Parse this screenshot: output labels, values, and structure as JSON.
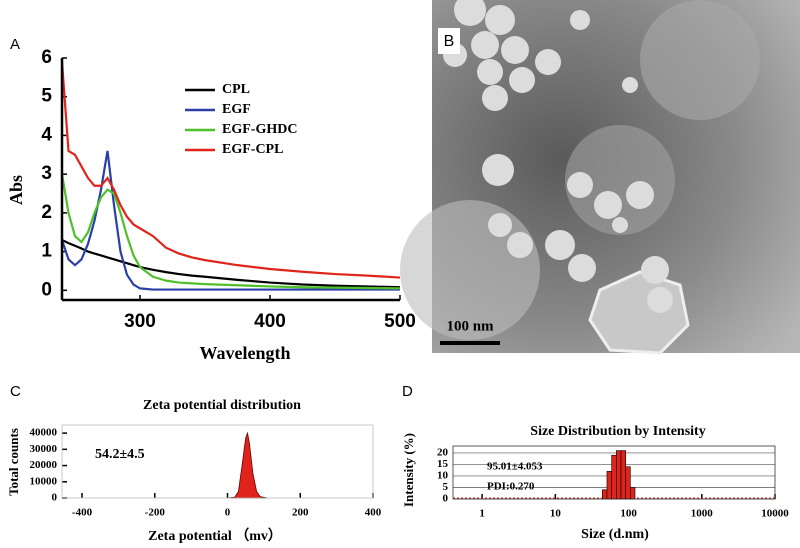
{
  "chart_data": [
    {
      "type": "line",
      "panel_label": "A",
      "xlabel": "Wavelength",
      "ylabel": "Abs",
      "x": [
        240,
        245,
        250,
        255,
        260,
        265,
        270,
        275,
        280,
        285,
        290,
        295,
        300,
        310,
        320,
        330,
        340,
        350,
        375,
        400,
        425,
        450,
        475,
        500
      ],
      "series": [
        {
          "name": "CPL",
          "color": "#000000",
          "values": [
            1.3,
            1.22,
            1.15,
            1.08,
            1.0,
            0.95,
            0.9,
            0.85,
            0.8,
            0.75,
            0.7,
            0.65,
            0.6,
            0.53,
            0.47,
            0.42,
            0.38,
            0.35,
            0.27,
            0.2,
            0.15,
            0.12,
            0.1,
            0.08
          ]
        },
        {
          "name": "EGF",
          "color": "#2b3fa8",
          "values": [
            1.3,
            0.8,
            0.65,
            0.8,
            1.2,
            1.8,
            2.6,
            3.6,
            2.2,
            1.0,
            0.4,
            0.15,
            0.05,
            0.02,
            0.02,
            0.02,
            0.02,
            0.02,
            0.02,
            0.02,
            0.02,
            0.02,
            0.02,
            0.02
          ]
        },
        {
          "name": "EGF-GHDC",
          "color": "#4fbf2a",
          "values": [
            3.0,
            2.0,
            1.4,
            1.25,
            1.5,
            2.0,
            2.4,
            2.6,
            2.5,
            2.0,
            1.4,
            0.9,
            0.6,
            0.35,
            0.25,
            0.2,
            0.18,
            0.16,
            0.13,
            0.1,
            0.08,
            0.07,
            0.06,
            0.05
          ]
        },
        {
          "name": "EGF-CPL",
          "color": "#e0241c",
          "values": [
            5.9,
            3.6,
            3.5,
            3.2,
            2.9,
            2.7,
            2.7,
            2.9,
            2.6,
            2.2,
            1.9,
            1.7,
            1.6,
            1.4,
            1.1,
            0.95,
            0.85,
            0.78,
            0.65,
            0.55,
            0.48,
            0.42,
            0.38,
            0.33
          ]
        }
      ],
      "xlim": [
        240,
        500
      ],
      "xticks": [
        300,
        400,
        500
      ],
      "ylim": [
        -0.25,
        6
      ],
      "yticks": [
        0,
        1,
        2,
        3,
        4,
        5,
        6
      ]
    },
    {
      "type": "image",
      "panel_label": "B",
      "scale_bar_label": "100 nm"
    },
    {
      "type": "area",
      "panel_label": "C",
      "title": "Zeta potential distribution",
      "xlabel": "Zeta potential （mv）",
      "ylabel": "Total counts",
      "annotation": "54.2±4.5",
      "x": [
        0,
        20,
        30,
        40,
        50,
        55,
        60,
        70,
        80,
        90,
        110
      ],
      "values": [
        0,
        500,
        4000,
        20000,
        37000,
        40000,
        34000,
        15000,
        4000,
        800,
        0
      ],
      "color": "#e0241c",
      "xlim": [
        -455,
        400
      ],
      "xticks": [
        -400,
        -200,
        0,
        200,
        400
      ],
      "ylim": [
        0,
        45000
      ],
      "yticks": [
        0,
        10000,
        20000,
        30000,
        40000
      ]
    },
    {
      "type": "histogram",
      "panel_label": "D",
      "title": "Size Distribution by Intensity",
      "xlabel": "Size (d.nm)",
      "ylabel": "Intensity (%)",
      "annotations": [
        "95.01±4.053",
        "PDI:0.270"
      ],
      "bins": [
        43.8,
        50.7,
        58.8,
        68.1,
        78.8,
        91.3,
        105.7,
        122.4
      ],
      "values": [
        4,
        12,
        19,
        21,
        21,
        14,
        5
      ],
      "color": "#e0241c",
      "log_x": true,
      "grid": true,
      "xlim": [
        0.4,
        10000
      ],
      "xticks": [
        1,
        10,
        100,
        1000,
        10000
      ],
      "ylim": [
        0,
        23
      ],
      "yticks": [
        0,
        5,
        10,
        15,
        20
      ]
    }
  ]
}
